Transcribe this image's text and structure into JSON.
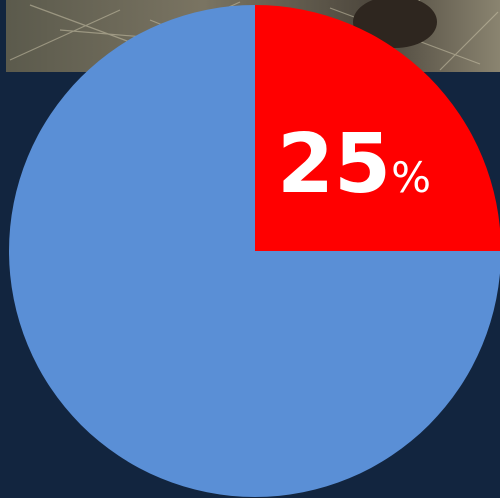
{
  "chart_data": {
    "type": "pie",
    "values": [
      25,
      75
    ],
    "value_labels": [
      "25%",
      null
    ],
    "colors": [
      "#ff0000",
      "#5a8fd6"
    ]
  }
}
